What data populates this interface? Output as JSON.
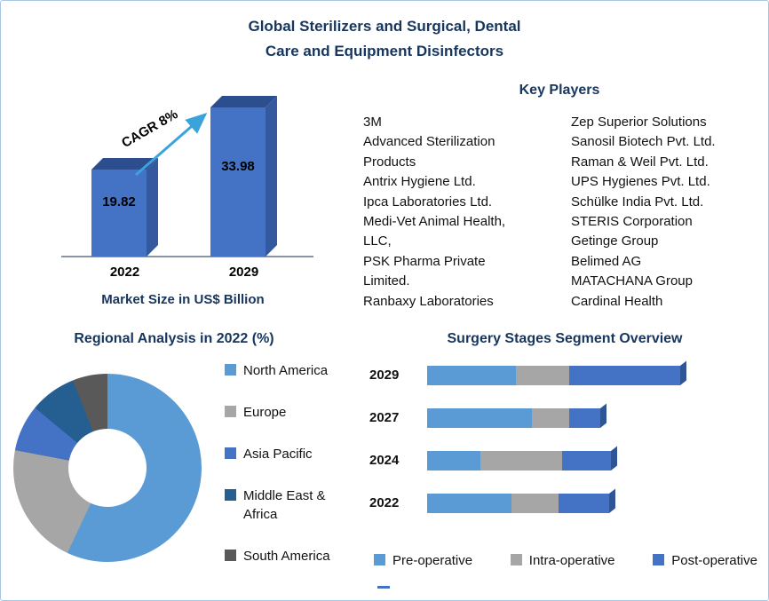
{
  "page": {
    "title": "Global Sterilizers and Surgical, Dental\nCare and Equipment Disinfectors"
  },
  "key_players": {
    "heading": "Key Players",
    "column1": [
      "3M",
      "Advanced Sterilization Products",
      "Antrix Hygiene Ltd.",
      "Ipca Laboratories Ltd.",
      "Medi-Vet Animal Health, LLC,",
      "PSK Pharma Private Limited.",
      "Ranbaxy Laboratories"
    ],
    "column2": [
      "Zep Superior Solutions",
      "Sanosil Biotech Pvt. Ltd.",
      "Raman & Weil Pvt. Ltd.",
      "UPS Hygienes Pvt. Ltd.",
      "Schülke India Pvt. Ltd.",
      "STERIS Corporation",
      "Getinge Group",
      "Belimed AG",
      "MATACHANA Group",
      "Cardinal Health"
    ]
  },
  "colors": {
    "heading_navy": "#17365D",
    "border_blue": "#A9C7E4",
    "pre_operative_blue": "#5B9BD5",
    "intra_operative_gray": "#A6A6A6",
    "post_operative_blue": "#4472C4"
  },
  "chart_data": [
    {
      "id": "market-size",
      "type": "bar",
      "title": "Market Size in US$ Billion",
      "categories": [
        "2022",
        "2029"
      ],
      "values": [
        19.82,
        33.98
      ],
      "annotation": "CAGR 8%",
      "bar_color": "#4472C4",
      "bar_top_color": "#2C4D8E",
      "bar_side_color": "#35599E",
      "arrow_color": "#3BA3DC",
      "ylim": [
        0,
        35
      ]
    },
    {
      "id": "regional-analysis",
      "type": "pie",
      "donut": true,
      "title": "Regional Analysis in 2022 (%)",
      "labels": [
        "North America",
        "Europe",
        "Asia Pacific",
        "Middle East & Africa",
        "South America"
      ],
      "values": [
        57,
        21,
        8,
        8,
        6
      ],
      "colors": [
        "#5B9BD5",
        "#A6A6A6",
        "#4472C4",
        "#255E91",
        "#595959"
      ],
      "legend_position": "right"
    },
    {
      "id": "surgery-stages",
      "type": "bar",
      "orientation": "horizontal-stacked",
      "title": "Surgery Stages Segment Overview",
      "categories": [
        "2029",
        "2027",
        "2024",
        "2022"
      ],
      "units": "relative length",
      "series": [
        {
          "name": "Pre-operative",
          "color": "#5B9BD5",
          "values": [
            100,
            118,
            60,
            95
          ]
        },
        {
          "name": "Intra-operative",
          "color": "#A6A6A6",
          "values": [
            60,
            42,
            92,
            53
          ]
        },
        {
          "name": "Post-operative",
          "color": "#4472C4",
          "values": [
            125,
            35,
            55,
            57
          ]
        }
      ],
      "legend_position": "bottom"
    }
  ]
}
